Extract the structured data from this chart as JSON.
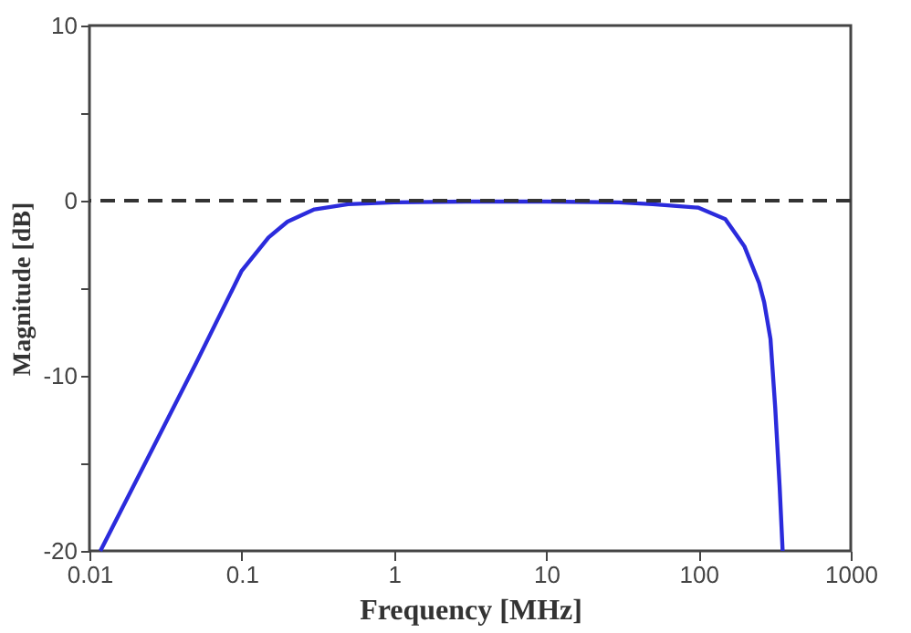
{
  "chart_data": {
    "type": "line",
    "xlabel": "Frequency [MHz]",
    "ylabel": "Magnitude [dB]",
    "log": "x",
    "xlim": [
      0.01,
      1000
    ],
    "xticks": [
      {
        "value": 0.01,
        "label": "0.01"
      },
      {
        "value": 0.1,
        "label": "0.1"
      },
      1,
      10,
      100,
      1000
    ],
    "ylim": [
      -20,
      10
    ],
    "yticks": [
      -20,
      {
        "value": -15,
        "label": null
      },
      -10,
      {
        "value": -5,
        "label": null
      },
      0,
      {
        "value": 5,
        "label": null
      },
      10
    ],
    "grid": false,
    "legend": false,
    "marker": "none",
    "line_style": "solid",
    "series": [
      {
        "color": "#2b2bdc",
        "x": [
          0.0118,
          0.02,
          0.05,
          0.1,
          0.15,
          0.2,
          0.3,
          0.5,
          1,
          3,
          10,
          30,
          50,
          100,
          150,
          200,
          250,
          270,
          297,
          319,
          341,
          357
        ],
        "values": [
          -20,
          -16.1,
          -9.3,
          -4.0,
          -2.1,
          -1.2,
          -0.5,
          -0.2,
          -0.1,
          -0.05,
          -0.05,
          -0.1,
          -0.2,
          -0.4,
          -1.05,
          -2.6,
          -4.7,
          -5.8,
          -7.9,
          -11.8,
          -16.3,
          -20
        ]
      }
    ],
    "ref_lines": [
      {
        "axis": "y",
        "value": 0,
        "color": "#333333",
        "line_style": "dashed"
      }
    ]
  }
}
